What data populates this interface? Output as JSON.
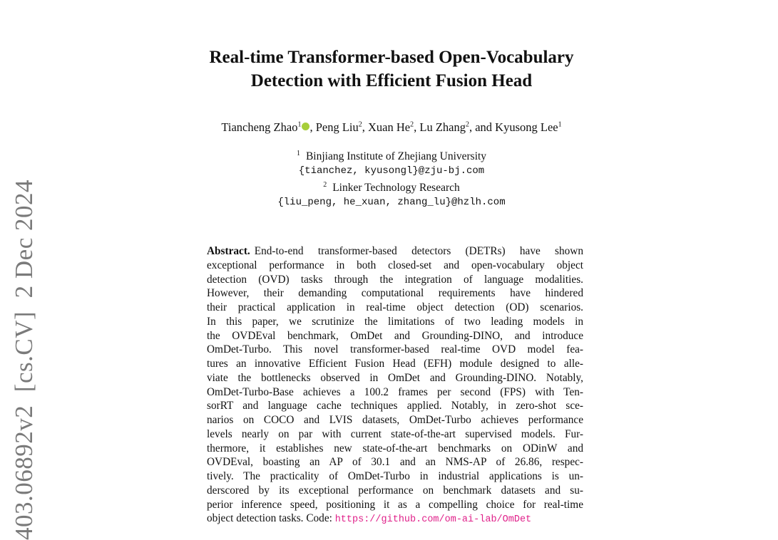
{
  "stamp": "403.06892v2  [cs.CV]  2 Dec 2024",
  "title": [
    "Real-time Transformer-based Open-Vocabulary",
    "Detection with Efficient Fusion Head"
  ],
  "authors": [
    {
      "name": "Tiancheng Zhao",
      "sup": "1",
      "orcid": true
    },
    {
      "name": "Peng Liu",
      "sup": "2"
    },
    {
      "name": "Xuan He",
      "sup": "2"
    },
    {
      "name": "Lu Zhang",
      "sup": "2"
    },
    {
      "name": "and Kyusong Lee",
      "sup": "1"
    }
  ],
  "affiliations": [
    {
      "num": "1",
      "name": "Binjiang Institute of Zhejiang University",
      "email": "{tianchez, kyusongl}@zju-bj.com"
    },
    {
      "num": "2",
      "name": "Linker Technology Research",
      "email": "{liu_peng, he_xuan, zhang_lu}@hzlh.com"
    }
  ],
  "abstract": {
    "label": "Abstract.",
    "lines": [
      "End-to-end transformer-based detectors (DETRs) have shown",
      "exceptional performance in both closed-set and open-vocabulary object",
      "detection (OVD) tasks through the integration of language modalities.",
      "However, their demanding computational requirements have hindered",
      "their practical application in real-time object detection (OD) scenarios.",
      "In this paper, we scrutinize the limitations of two leading models in",
      "the OVDEval benchmark, OmDet and Grounding-DINO, and introduce",
      "OmDet-Turbo. This novel transformer-based real-time OVD model fea-",
      "tures an innovative Efficient Fusion Head (EFH) module designed to alle-",
      "viate the bottlenecks observed in OmDet and Grounding-DINO. Notably,",
      "OmDet-Turbo-Base achieves a 100.2 frames per second (FPS) with Ten-",
      "sorRT and language cache techniques applied. Notably, in zero-shot sce-",
      "narios on COCO and LVIS datasets, OmDet-Turbo achieves performance",
      "levels nearly on par with current state-of-the-art supervised models. Fur-",
      "thermore, it establishes new state-of-the-art benchmarks on ODinW and",
      "OVDEval, boasting an AP of 30.1 and an NMS-AP of 26.86, respec-",
      "tively. The practicality of OmDet-Turbo in industrial applications is un-",
      "derscored by its exceptional performance on benchmark datasets and su-",
      "perior inference speed, positioning it as a compelling choice for real-time"
    ],
    "last_line": "object detection tasks. Code:",
    "code_link": "https://github.com/om-ai-lab/OmDet",
    "link_color": "#e0218a"
  }
}
